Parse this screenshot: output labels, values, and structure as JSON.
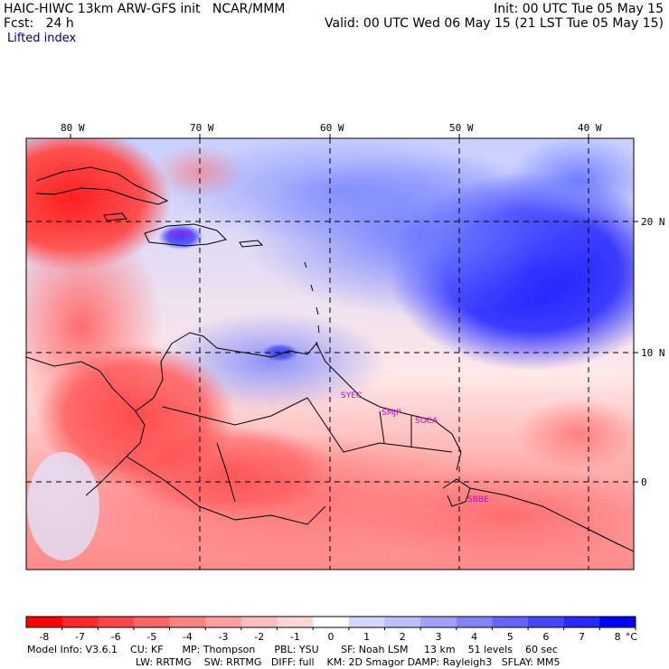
{
  "header": {
    "model_line": "HAIC-HIWC 13km ARW-GFS init   NCAR/MMM",
    "init_line": "Init: 00 UTC Tue 05 May 15",
    "fcst_line": "Fcst:   24 h",
    "valid_line": "Valid: 00 UTC Wed 06 May 15 (21 LST Tue 05 May 15)",
    "field_name": "Lifted index"
  },
  "map": {
    "lon_labels": [
      "80 W",
      "70 W",
      "60 W",
      "50 W",
      "40 W"
    ],
    "lat_labels": [
      "20 N",
      "10 N",
      "0"
    ],
    "stations": [
      "SKBO",
      "SYEC",
      "SMJP",
      "SOCA",
      "SBBE"
    ]
  },
  "colorbar": {
    "labels": [
      "-8",
      "-7",
      "-6",
      "-5",
      "-4",
      "-3",
      "-2",
      "-1",
      "0",
      "1",
      "2",
      "3",
      "4",
      "5",
      "6",
      "7",
      "8"
    ],
    "unit": "°C",
    "colors": [
      "#ff0000",
      "#ff2828",
      "#ff4646",
      "#ff6464",
      "#ff8282",
      "#ffa0a0",
      "#ffbebe",
      "#ffd6d6",
      "#ffffff",
      "#d6d6ff",
      "#bebeff",
      "#a0a0ff",
      "#8282ff",
      "#6464ff",
      "#4646ff",
      "#2828ff",
      "#0000ff"
    ]
  },
  "footer": {
    "line1": "Model Info: V3.6.1    CU: KF      MP: Thompson      PBL: YSU       SF: Noah LSM     13 km    51 levels    60 sec",
    "line2": "LW: RRTMG    SW: RRTMG   DIFF: full    KM: 2D Smagor DAMP: Rayleigh3   SFLAY: MM5"
  }
}
